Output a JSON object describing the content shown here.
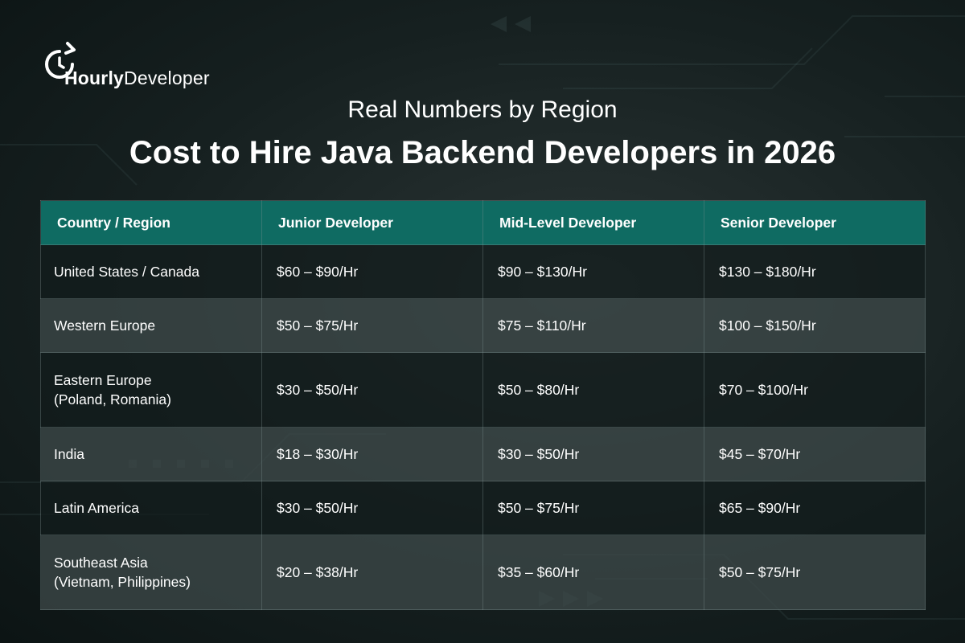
{
  "brand": {
    "name_bold": "Hourly",
    "name_regular": "Developer"
  },
  "subtitle": "Real Numbers by Region",
  "title": "Cost to Hire Java Backend Developers in 2026",
  "table": {
    "headers": [
      "Country / Region",
      "Junior Developer",
      "Mid-Level Developer",
      "Senior Developer"
    ],
    "rows": [
      {
        "region_line1": "United States / Canada",
        "region_line2": "",
        "junior": "$60 – $90/Hr",
        "mid": "$90 – $130/Hr",
        "senior": "$130 – $180/Hr"
      },
      {
        "region_line1": "Western Europe",
        "region_line2": "",
        "junior": "$50 – $75/Hr",
        "mid": "$75 – $110/Hr",
        "senior": "$100 – $150/Hr"
      },
      {
        "region_line1": "Eastern Europe",
        "region_line2": "(Poland, Romania)",
        "junior": "$30 – $50/Hr",
        "mid": "$50 – $80/Hr",
        "senior": "$70 – $100/Hr"
      },
      {
        "region_line1": "India",
        "region_line2": "",
        "junior": "$18 – $30/Hr",
        "mid": "$30 – $50/Hr",
        "senior": "$45 – $70/Hr"
      },
      {
        "region_line1": "Latin America",
        "region_line2": "",
        "junior": "$30 – $50/Hr",
        "mid": "$50 – $75/Hr",
        "senior": "$65 – $90/Hr"
      },
      {
        "region_line1": "Southeast Asia",
        "region_line2": "(Vietnam, Philippines)",
        "junior": "$20 – $38/Hr",
        "mid": "$35 – $60/Hr",
        "senior": "$50 – $75/Hr"
      }
    ]
  },
  "colors": {
    "header_bg": "#0f6b62",
    "background": "#162020",
    "text": "#ffffff"
  },
  "icons": [
    "clock-refresh-icon"
  ]
}
